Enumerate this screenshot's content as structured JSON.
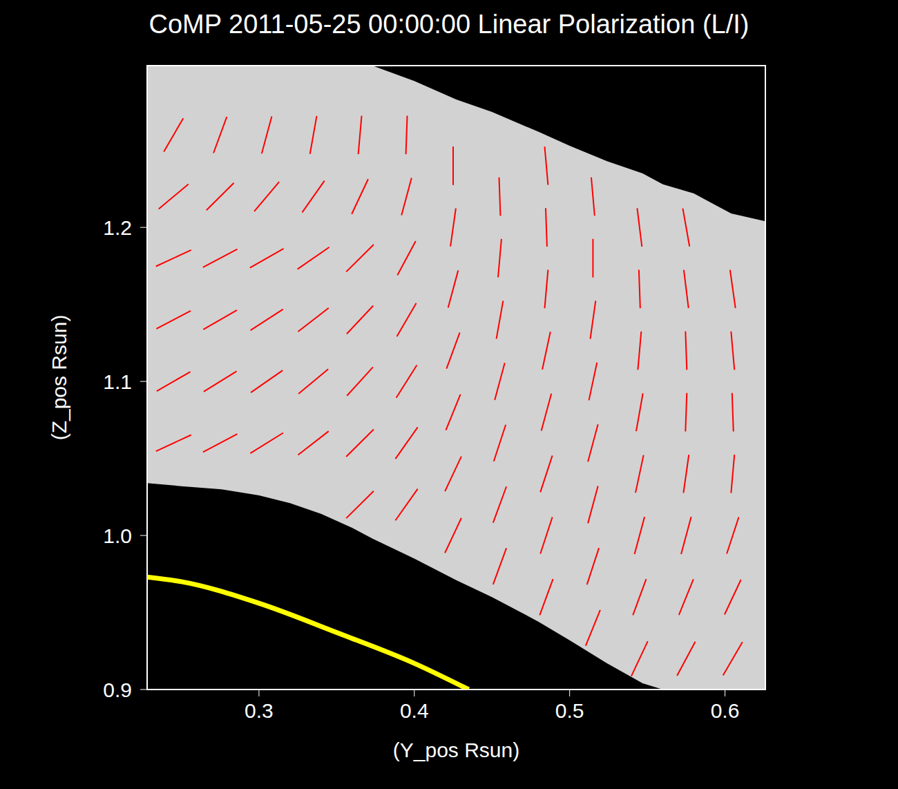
{
  "chart_data": {
    "type": "vector_field",
    "title": "CoMP 2011-05-25 00:00:00 Linear Polarization (L/I)",
    "x_label": "(Y_pos Rsun)",
    "y_label": "(Z_pos Rsun)",
    "xlim": [
      0.228,
      0.626
    ],
    "ylim": [
      0.9,
      1.305
    ],
    "xticks": [
      0.3,
      0.4,
      0.5,
      0.6
    ],
    "yticks": [
      0.9,
      {
        "value": 1,
        "label": "1.0"
      },
      1.1,
      1.2
    ],
    "grid": false,
    "observed_region": {
      "color": "#d2d2d2",
      "x": [
        0.228,
        0.25,
        0.276,
        0.3,
        0.32,
        0.34,
        0.36,
        0.373,
        0.4,
        0.427,
        0.45,
        0.48,
        0.5,
        0.524,
        0.547,
        0.56,
        0.58,
        0.604,
        0.626
      ],
      "lower": [
        1.034,
        1.032,
        1.03,
        1.026,
        1.021,
        1.014,
        1.005,
        0.998,
        0.985,
        0.971,
        0.96,
        0.944,
        0.932,
        0.917,
        0.904,
        0.9,
        0.9,
        0.9,
        0.9
      ],
      "upper": [
        1.305,
        1.305,
        1.305,
        1.305,
        1.305,
        1.305,
        1.305,
        1.305,
        1.295,
        1.283,
        1.275,
        1.262,
        1.253,
        1.243,
        1.235,
        1.228,
        1.222,
        1.209,
        1.204
      ]
    },
    "limb": {
      "color": "#ffff00",
      "x": [
        0.228,
        0.25,
        0.3,
        0.35,
        0.4,
        0.435
      ],
      "y": [
        0.973,
        0.97,
        0.956,
        0.937,
        0.917,
        0.9
      ]
    },
    "vectors": {
      "color": "#ff0000",
      "points": [
        {
          "x": 0.245,
          "y": 1.06,
          "angle": 25
        },
        {
          "x": 0.245,
          "y": 1.1,
          "angle": 30
        },
        {
          "x": 0.245,
          "y": 1.14,
          "angle": 28
        },
        {
          "x": 0.245,
          "y": 1.18,
          "angle": 25
        },
        {
          "x": 0.245,
          "y": 1.22,
          "angle": 40
        },
        {
          "x": 0.245,
          "y": 1.26,
          "angle": 60
        },
        {
          "x": 0.275,
          "y": 1.06,
          "angle": 28
        },
        {
          "x": 0.275,
          "y": 1.1,
          "angle": 32
        },
        {
          "x": 0.275,
          "y": 1.14,
          "angle": 30
        },
        {
          "x": 0.275,
          "y": 1.18,
          "angle": 28
        },
        {
          "x": 0.275,
          "y": 1.22,
          "angle": 45
        },
        {
          "x": 0.275,
          "y": 1.26,
          "angle": 70
        },
        {
          "x": 0.305,
          "y": 1.06,
          "angle": 32
        },
        {
          "x": 0.305,
          "y": 1.1,
          "angle": 35
        },
        {
          "x": 0.305,
          "y": 1.14,
          "angle": 33
        },
        {
          "x": 0.305,
          "y": 1.18,
          "angle": 30
        },
        {
          "x": 0.305,
          "y": 1.22,
          "angle": 50
        },
        {
          "x": 0.305,
          "y": 1.26,
          "angle": 75
        },
        {
          "x": 0.335,
          "y": 1.06,
          "angle": 38
        },
        {
          "x": 0.335,
          "y": 1.1,
          "angle": 40
        },
        {
          "x": 0.335,
          "y": 1.14,
          "angle": 38
        },
        {
          "x": 0.335,
          "y": 1.18,
          "angle": 35
        },
        {
          "x": 0.335,
          "y": 1.22,
          "angle": 55
        },
        {
          "x": 0.335,
          "y": 1.26,
          "angle": 80
        },
        {
          "x": 0.365,
          "y": 1.02,
          "angle": 45
        },
        {
          "x": 0.365,
          "y": 1.06,
          "angle": 45
        },
        {
          "x": 0.365,
          "y": 1.1,
          "angle": 48
        },
        {
          "x": 0.365,
          "y": 1.14,
          "angle": 47
        },
        {
          "x": 0.365,
          "y": 1.18,
          "angle": 45
        },
        {
          "x": 0.365,
          "y": 1.22,
          "angle": 65
        },
        {
          "x": 0.365,
          "y": 1.26,
          "angle": 85
        },
        {
          "x": 0.395,
          "y": 1.02,
          "angle": 55
        },
        {
          "x": 0.395,
          "y": 1.06,
          "angle": 55
        },
        {
          "x": 0.395,
          "y": 1.1,
          "angle": 58
        },
        {
          "x": 0.395,
          "y": 1.14,
          "angle": 60
        },
        {
          "x": 0.395,
          "y": 1.18,
          "angle": 62
        },
        {
          "x": 0.395,
          "y": 1.22,
          "angle": 75
        },
        {
          "x": 0.395,
          "y": 1.26,
          "angle": 88
        },
        {
          "x": 0.425,
          "y": 1.0,
          "angle": 65
        },
        {
          "x": 0.425,
          "y": 1.04,
          "angle": 65
        },
        {
          "x": 0.425,
          "y": 1.08,
          "angle": 68
        },
        {
          "x": 0.425,
          "y": 1.12,
          "angle": 70
        },
        {
          "x": 0.425,
          "y": 1.16,
          "angle": 75
        },
        {
          "x": 0.425,
          "y": 1.2,
          "angle": 82
        },
        {
          "x": 0.425,
          "y": 1.24,
          "angle": 90
        },
        {
          "x": 0.455,
          "y": 0.98,
          "angle": 70
        },
        {
          "x": 0.455,
          "y": 1.02,
          "angle": 70
        },
        {
          "x": 0.455,
          "y": 1.06,
          "angle": 72
        },
        {
          "x": 0.455,
          "y": 1.1,
          "angle": 75
        },
        {
          "x": 0.455,
          "y": 1.14,
          "angle": 80
        },
        {
          "x": 0.455,
          "y": 1.18,
          "angle": 85
        },
        {
          "x": 0.455,
          "y": 1.22,
          "angle": 92
        },
        {
          "x": 0.485,
          "y": 0.96,
          "angle": 70
        },
        {
          "x": 0.485,
          "y": 1.0,
          "angle": 72
        },
        {
          "x": 0.485,
          "y": 1.04,
          "angle": 72
        },
        {
          "x": 0.485,
          "y": 1.08,
          "angle": 75
        },
        {
          "x": 0.485,
          "y": 1.12,
          "angle": 78
        },
        {
          "x": 0.485,
          "y": 1.16,
          "angle": 85
        },
        {
          "x": 0.485,
          "y": 1.2,
          "angle": 92
        },
        {
          "x": 0.485,
          "y": 1.24,
          "angle": 95
        },
        {
          "x": 0.515,
          "y": 0.94,
          "angle": 68
        },
        {
          "x": 0.515,
          "y": 0.98,
          "angle": 72
        },
        {
          "x": 0.515,
          "y": 1.02,
          "angle": 75
        },
        {
          "x": 0.515,
          "y": 1.06,
          "angle": 75
        },
        {
          "x": 0.515,
          "y": 1.1,
          "angle": 78
        },
        {
          "x": 0.515,
          "y": 1.14,
          "angle": 82
        },
        {
          "x": 0.515,
          "y": 1.18,
          "angle": 90
        },
        {
          "x": 0.515,
          "y": 1.22,
          "angle": 95
        },
        {
          "x": 0.545,
          "y": 0.92,
          "angle": 65
        },
        {
          "x": 0.545,
          "y": 0.96,
          "angle": 70
        },
        {
          "x": 0.545,
          "y": 1.0,
          "angle": 75
        },
        {
          "x": 0.545,
          "y": 1.04,
          "angle": 78
        },
        {
          "x": 0.545,
          "y": 1.08,
          "angle": 80
        },
        {
          "x": 0.545,
          "y": 1.12,
          "angle": 85
        },
        {
          "x": 0.545,
          "y": 1.16,
          "angle": 92
        },
        {
          "x": 0.545,
          "y": 1.2,
          "angle": 97
        },
        {
          "x": 0.575,
          "y": 0.92,
          "angle": 62
        },
        {
          "x": 0.575,
          "y": 0.96,
          "angle": 68
        },
        {
          "x": 0.575,
          "y": 1.0,
          "angle": 75
        },
        {
          "x": 0.575,
          "y": 1.04,
          "angle": 82
        },
        {
          "x": 0.575,
          "y": 1.08,
          "angle": 88
        },
        {
          "x": 0.575,
          "y": 1.12,
          "angle": 92
        },
        {
          "x": 0.575,
          "y": 1.16,
          "angle": 97
        },
        {
          "x": 0.575,
          "y": 1.2,
          "angle": 100
        },
        {
          "x": 0.605,
          "y": 0.92,
          "angle": 60
        },
        {
          "x": 0.605,
          "y": 0.96,
          "angle": 65
        },
        {
          "x": 0.605,
          "y": 1.0,
          "angle": 72
        },
        {
          "x": 0.605,
          "y": 1.04,
          "angle": 85
        },
        {
          "x": 0.605,
          "y": 1.08,
          "angle": 92
        },
        {
          "x": 0.605,
          "y": 1.12,
          "angle": 95
        },
        {
          "x": 0.605,
          "y": 1.16,
          "angle": 98
        }
      ]
    }
  }
}
